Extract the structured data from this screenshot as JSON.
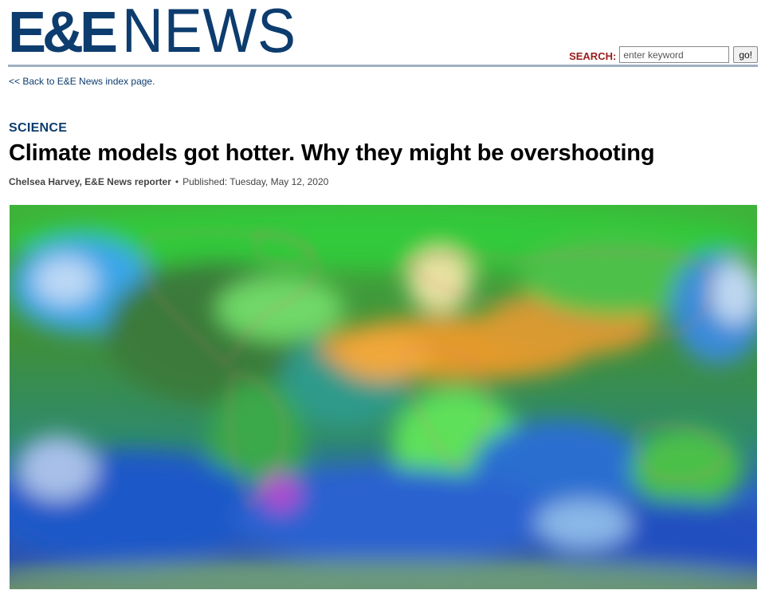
{
  "masthead": {
    "logo_ee": "E&E",
    "logo_news": "NEWS"
  },
  "search": {
    "label": "SEARCH:",
    "placeholder": "enter keyword",
    "button_label": "go!"
  },
  "nav": {
    "back_link": "<< Back to E&E News index page."
  },
  "article": {
    "section": "SCIENCE",
    "headline": "Climate models got hotter. Why they might be overshooting",
    "author": "Chelsea Harvey, E&E News reporter",
    "separator": "•",
    "published": "Published: Tuesday, May 12, 2020"
  },
  "hero_image": {
    "subject": "global-climate-model-map",
    "colors": [
      "#2bb52b",
      "#1e6fd8",
      "#e8962a",
      "#6fe06f",
      "#2a4fb8"
    ]
  }
}
